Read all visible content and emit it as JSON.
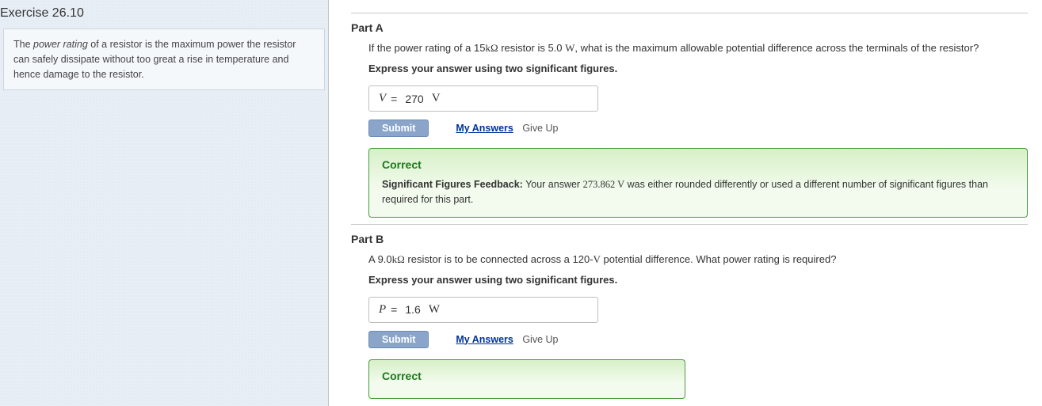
{
  "exercise": {
    "title": "Exercise 26.10",
    "info_html": "The <em>power rating</em> of a resistor is the maximum power the resistor can safely dissipate without too great a rise in temperature and hence damage to the resistor."
  },
  "buttons": {
    "submit": "Submit",
    "my_answers": "My Answers",
    "give_up": "Give Up"
  },
  "partA": {
    "title": "Part A",
    "question_pre": "If the power rating of a 15",
    "question_unit1": "kΩ",
    "question_mid": " resistor is 5.0 ",
    "question_unit2": "W",
    "question_post": ", what is the maximum allowable potential difference across the terminals of the resistor?",
    "instruct": "Express your answer using two significant figures.",
    "var": "V",
    "eq": "=",
    "value": "270",
    "unit": "V",
    "feedback": {
      "title": "Correct",
      "label": "Significant Figures Feedback:",
      "text_pre": " Your answer ",
      "ans": "273.862 V",
      "text_post": " was either rounded differently or used a different number of significant figures than required for this part."
    }
  },
  "partB": {
    "title": "Part B",
    "question_pre": "A 9.0",
    "question_unit1": "kΩ",
    "question_mid": " resistor is to be connected across a 120-",
    "question_unit2": "V",
    "question_post": " potential difference. What power rating is required?",
    "instruct": "Express your answer using two significant figures.",
    "var": "P",
    "eq": "=",
    "value": "1.6",
    "unit": "W",
    "feedback": {
      "title": "Correct"
    }
  }
}
